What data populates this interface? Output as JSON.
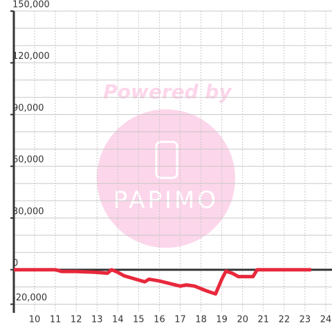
{
  "chart_data": {
    "type": "line",
    "watermark": {
      "line1": "Powered by",
      "line2": "PAPIMO"
    },
    "x": [
      9,
      11,
      11.3,
      12,
      13,
      13.5,
      13.7,
      14,
      14.3,
      15,
      15.3,
      15.5,
      16,
      16.5,
      17,
      17.3,
      17.7,
      18,
      18.3,
      18.7,
      19,
      19.2,
      19.5,
      19.8,
      20.5,
      20.7,
      23.3
    ],
    "series": [
      {
        "color": "#e8283c",
        "values": [
          0,
          0,
          -1000,
          -1000,
          -1500,
          -2000,
          0,
          -1500,
          -3500,
          -6000,
          -7000,
          -5500,
          -6500,
          -8000,
          -9500,
          -8800,
          -9500,
          -11000,
          -12400,
          -14000,
          -5500,
          -800,
          -2000,
          -4000,
          -4000,
          0,
          0
        ]
      }
    ],
    "xlim": [
      9,
      24.3
    ],
    "ylim": [
      -25000,
      150000
    ],
    "xticks": [
      10,
      11,
      12,
      13,
      14,
      15,
      16,
      17,
      18,
      19,
      20,
      21,
      22,
      23,
      24
    ],
    "yticks": [
      {
        "value": -20000,
        "label": "-20,000"
      },
      {
        "value": 0,
        "label": "0"
      },
      {
        "value": 30000,
        "label": "30,000"
      },
      {
        "value": 60000,
        "label": "60,000"
      },
      {
        "value": 90000,
        "label": "90,000"
      },
      {
        "value": 120000,
        "label": "120,000"
      },
      {
        "value": 150000,
        "label": "150,000"
      }
    ],
    "ygrid": [
      -20000,
      -10000,
      10000,
      20000,
      30000,
      40000,
      50000,
      60000,
      70000,
      80000,
      90000,
      100000,
      110000,
      120000,
      130000,
      140000,
      150000
    ],
    "grid": true
  }
}
